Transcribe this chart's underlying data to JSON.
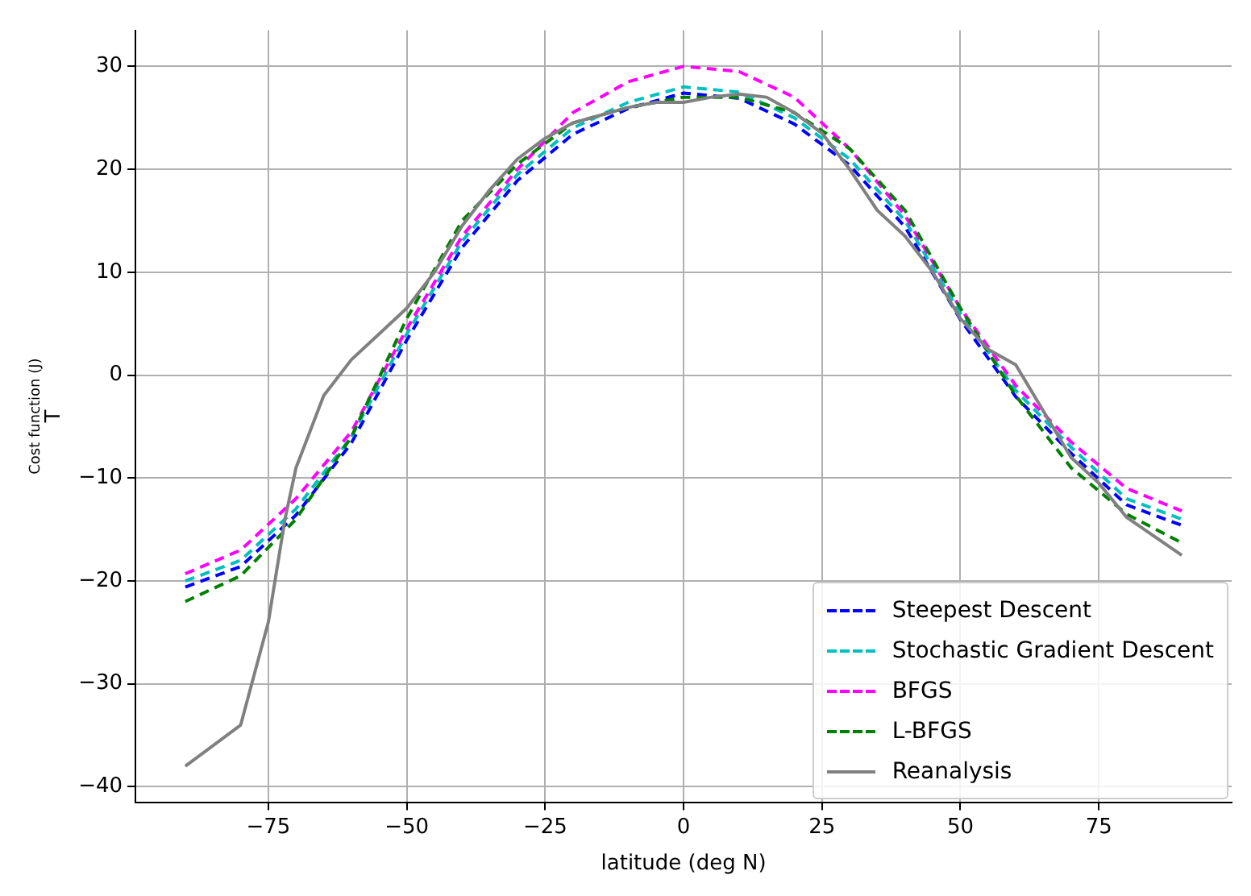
{
  "chart_data": {
    "type": "line",
    "xlabel": "latitude (deg N)",
    "ylabel": "T",
    "annotations": [
      "Cost function (J)"
    ],
    "xlim": [
      -99,
      99
    ],
    "xticks": [
      -75,
      -50,
      -25,
      0,
      25,
      50,
      75
    ],
    "ylim": [
      -41.5,
      33.5
    ],
    "yticks": [
      -40,
      -30,
      -20,
      -10,
      0,
      10,
      20,
      30
    ],
    "grid": true,
    "legend": "bottom right",
    "marker": "none",
    "series": [
      {
        "name": "Steepest Descent",
        "color": "#0000ff",
        "line_style": "dashed",
        "x": [
          -90,
          -80,
          -70,
          -60,
          -50,
          -40,
          -30,
          -20,
          -10,
          0,
          10,
          20,
          30,
          40,
          50,
          60,
          70,
          80,
          90
        ],
        "values": [
          -20.6,
          -18.6,
          -13.6,
          -6.6,
          3.4,
          12.4,
          18.9,
          23.4,
          25.9,
          27.4,
          26.9,
          24.4,
          20.4,
          14.4,
          5.4,
          -2.1,
          -7.6,
          -12.6,
          -14.6
        ]
      },
      {
        "name": "Stochastic Gradient Descent",
        "color": "#00bfbf",
        "line_style": "dashed",
        "x": [
          -90,
          -80,
          -70,
          -60,
          -50,
          -40,
          -30,
          -20,
          -10,
          0,
          10,
          20,
          30,
          40,
          50,
          60,
          70,
          80,
          90
        ],
        "values": [
          -20,
          -18,
          -13,
          -6,
          4,
          13,
          19.5,
          24,
          26.5,
          28,
          27.5,
          25,
          21,
          15,
          6,
          -1.5,
          -7,
          -12,
          -14
        ]
      },
      {
        "name": "BFGS",
        "color": "#ff00ff",
        "line_style": "dashed",
        "x": [
          -90,
          -80,
          -70,
          -60,
          -50,
          -40,
          -30,
          -20,
          -10,
          0,
          10,
          20,
          30,
          40,
          50,
          60,
          70,
          80,
          90
        ],
        "values": [
          -19.3,
          -17,
          -12,
          -5.5,
          4.5,
          13.5,
          20,
          25.5,
          28.5,
          30,
          29.5,
          27,
          22,
          15.5,
          6.5,
          -1,
          -6.5,
          -11,
          -13.2
        ]
      },
      {
        "name": "L-BFGS",
        "color": "#008000",
        "line_style": "dashed",
        "x": [
          -90,
          -80,
          -70,
          -60,
          -50,
          -40,
          -30,
          -20,
          -10,
          0,
          10,
          20,
          30,
          40,
          50,
          60,
          70,
          80,
          90
        ],
        "values": [
          -22,
          -19.5,
          -14,
          -6,
          5.5,
          15,
          20.5,
          24.5,
          26,
          27,
          27,
          25.5,
          22,
          16,
          6.5,
          -2,
          -9,
          -13.5,
          -16.3
        ]
      },
      {
        "name": "Reanalysis",
        "color": "#808080",
        "line_style": "solid",
        "x": [
          -90,
          -80,
          -75,
          -72,
          -70,
          -65,
          -60,
          -55,
          -50,
          -45,
          -40,
          -35,
          -30,
          -25,
          -20,
          -10,
          -5,
          0,
          5,
          10,
          15,
          20,
          25,
          30,
          35,
          40,
          45,
          50,
          55,
          60,
          65,
          70,
          75,
          80,
          90
        ],
        "values": [
          -38,
          -34,
          -24,
          -14,
          -9,
          -2,
          1.5,
          4,
          6.5,
          10,
          14.5,
          18,
          21,
          23,
          24.5,
          26,
          26.5,
          26.5,
          27,
          27.3,
          27,
          25.5,
          23.5,
          20,
          16,
          13.5,
          10,
          5.5,
          2.5,
          1,
          -3.5,
          -8,
          -10.5,
          -13.8,
          -17.5
        ]
      }
    ]
  }
}
